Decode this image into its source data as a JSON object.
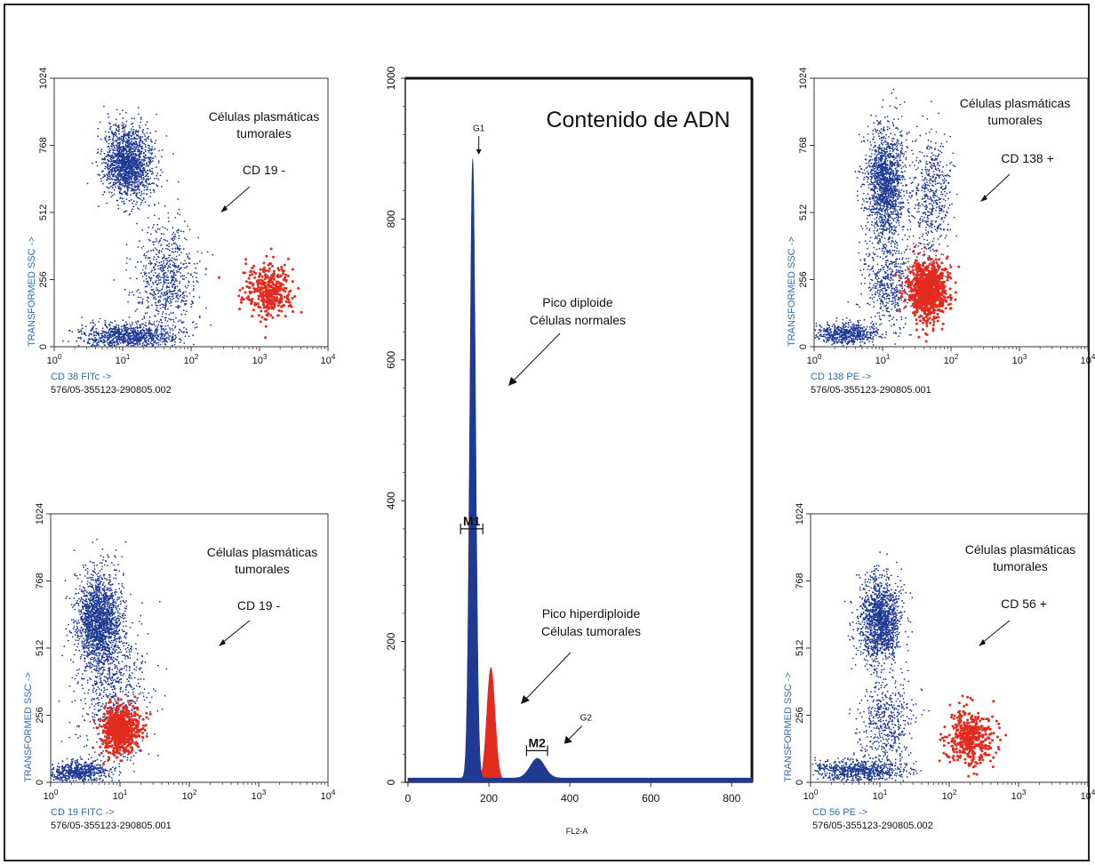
{
  "colors": {
    "blue": "#1f3a93",
    "red": "#e32b1f",
    "axis_label": "#2a6db5",
    "text": "#111111"
  },
  "chart_data": [
    {
      "type": "scatter",
      "ylabel": "TRANSFORMED SSC ->",
      "xlabel": "CD 38 FITc ->",
      "sample_id": "576/05-355123-290805.002",
      "x_scale": "log",
      "xlim": [
        1,
        10000
      ],
      "ylim": [
        0,
        1024
      ],
      "x_ticks": [
        1,
        10,
        100,
        1000,
        10000
      ],
      "y_ticks": [
        0,
        256,
        512,
        768,
        1024
      ],
      "annotation_title": [
        "Células plasmáticas",
        "tumorales"
      ],
      "annotation_marker": "CD  19 -",
      "series": [
        {
          "role": "other",
          "clusters": [
            {
              "cx": 12,
              "cy": 700,
              "sx": 0.18,
              "sy": 70,
              "n": 1600
            },
            {
              "cx": 12,
              "cy": 40,
              "sx": 0.35,
              "sy": 25,
              "n": 900
            },
            {
              "cx": 45,
              "cy": 250,
              "sx": 0.22,
              "sy": 110,
              "n": 700
            }
          ]
        },
        {
          "role": "target",
          "clusters": [
            {
              "cx": 1300,
              "cy": 210,
              "sx": 0.17,
              "sy": 50,
              "n": 380
            }
          ]
        }
      ]
    },
    {
      "type": "scatter",
      "ylabel": "TRANSFORMED SSC ->",
      "xlabel": "CD 138 PE ->",
      "sample_id": "576/05-355123-290805.001",
      "x_scale": "log",
      "xlim": [
        1,
        10000
      ],
      "ylim": [
        0,
        1024
      ],
      "x_ticks": [
        1,
        10,
        100,
        1000,
        10000
      ],
      "y_ticks": [
        0,
        256,
        512,
        768,
        1024
      ],
      "annotation_title": [
        "Células plasmáticas",
        "tumorales"
      ],
      "annotation_marker": "CD  138 +",
      "series": [
        {
          "role": "other",
          "clusters": [
            {
              "cx": 11,
              "cy": 620,
              "sx": 0.14,
              "sy": 110,
              "n": 1500
            },
            {
              "cx": 3,
              "cy": 50,
              "sx": 0.25,
              "sy": 20,
              "n": 600
            },
            {
              "cx": 50,
              "cy": 580,
              "sx": 0.15,
              "sy": 120,
              "n": 500
            },
            {
              "cx": 12,
              "cy": 250,
              "sx": 0.18,
              "sy": 90,
              "n": 500
            }
          ]
        },
        {
          "role": "target",
          "clusters": [
            {
              "cx": 45,
              "cy": 210,
              "sx": 0.14,
              "sy": 55,
              "n": 900
            }
          ]
        }
      ]
    },
    {
      "type": "scatter",
      "ylabel": "TRANSFORMED SSC ->",
      "xlabel": "CD 19 FITC ->",
      "sample_id": "576/05-355123-290805.001",
      "x_scale": "log",
      "xlim": [
        1,
        10000
      ],
      "ylim": [
        0,
        1024
      ],
      "x_ticks": [
        1,
        10,
        100,
        1000,
        10000
      ],
      "y_ticks": [
        0,
        256,
        512,
        768,
        1024
      ],
      "annotation_title": [
        "Células plasmáticas",
        "tumorales"
      ],
      "annotation_marker": "CD  19 -",
      "series": [
        {
          "role": "other",
          "clusters": [
            {
              "cx": 5,
              "cy": 620,
              "sx": 0.16,
              "sy": 90,
              "n": 1800
            },
            {
              "cx": 2.5,
              "cy": 40,
              "sx": 0.22,
              "sy": 20,
              "n": 600
            },
            {
              "cx": 8,
              "cy": 350,
              "sx": 0.25,
              "sy": 150,
              "n": 700
            }
          ]
        },
        {
          "role": "target",
          "clusters": [
            {
              "cx": 10,
              "cy": 200,
              "sx": 0.13,
              "sy": 45,
              "n": 700
            }
          ]
        }
      ]
    },
    {
      "type": "scatter",
      "ylabel": "TRANSFORMED SSC ->",
      "xlabel": "CD 56 PE ->",
      "sample_id": "576/05-355123-290805.002",
      "x_scale": "log",
      "xlim": [
        1,
        10000
      ],
      "ylim": [
        0,
        1024
      ],
      "x_ticks": [
        1,
        10,
        100,
        1000,
        10000
      ],
      "y_ticks": [
        0,
        256,
        512,
        768,
        1024
      ],
      "annotation_title": [
        "Células plasmáticas",
        "tumorales"
      ],
      "annotation_marker": "CD  56 +",
      "series": [
        {
          "role": "other",
          "clusters": [
            {
              "cx": 10,
              "cy": 620,
              "sx": 0.15,
              "sy": 80,
              "n": 1500
            },
            {
              "cx": 5,
              "cy": 45,
              "sx": 0.35,
              "sy": 20,
              "n": 700
            },
            {
              "cx": 12,
              "cy": 220,
              "sx": 0.2,
              "sy": 100,
              "n": 500
            }
          ]
        },
        {
          "role": "target",
          "clusters": [
            {
              "cx": 200,
              "cy": 170,
              "sx": 0.16,
              "sy": 50,
              "n": 450
            }
          ]
        }
      ]
    },
    {
      "type": "area",
      "title": "Contenido de ADN",
      "xlabel": "FL2-A",
      "xlim": [
        0,
        850
      ],
      "ylim": [
        0,
        1000
      ],
      "x_ticks": [
        0,
        200,
        400,
        600,
        800
      ],
      "y_ticks": [
        0,
        200,
        400,
        600,
        800,
        1000
      ],
      "series": [
        {
          "role": "diploid",
          "peaks": [
            {
              "mu": 160,
              "sigma": 7,
              "height": 880
            },
            {
              "mu": 320,
              "sigma": 18,
              "height": 28
            }
          ],
          "baseline": 6
        },
        {
          "role": "hyperdiploid",
          "peaks": [
            {
              "mu": 205,
              "sigma": 10,
              "height": 160
            },
            {
              "mu": 330,
              "sigma": 15,
              "height": 22
            }
          ],
          "baseline": 3
        }
      ],
      "markers": [
        {
          "label": "M1",
          "x0": 130,
          "x1": 185,
          "y": 360
        },
        {
          "label": "M2",
          "x0": 293,
          "x1": 345,
          "y": 45
        }
      ],
      "peak_labels": [
        {
          "label": "G1",
          "x": 175,
          "y": 925
        },
        {
          "label": "G2",
          "x": 440,
          "y": 88
        }
      ],
      "annotations": [
        {
          "lines": [
            "Pico diploide",
            "Células normales"
          ],
          "x": 650,
          "y": 345
        },
        {
          "lines": [
            "Pico hiperdiploide",
            "Células tumorales"
          ],
          "x": 665,
          "y": 695
        }
      ]
    }
  ]
}
